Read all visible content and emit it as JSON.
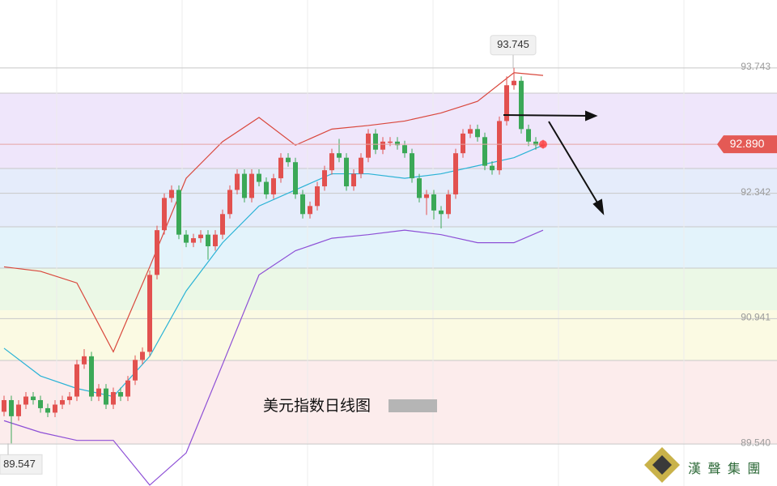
{
  "chart_data": {
    "type": "candlestick",
    "title": "美元指数日线图",
    "watermark": "漢 聲 集 團",
    "ylim": [
      89.07,
      94.503
    ],
    "yticks": [
      93.743,
      92.342,
      90.941,
      {
        "value": 89.54,
        "label": "89.540"
      }
    ],
    "grid": true,
    "up_color": "#e2514f",
    "down_color": "#3ba857",
    "open": [
      89.9,
      90.03,
      89.85,
      89.98,
      90.07,
      90.03,
      89.94,
      89.89,
      89.98,
      90.03,
      90.07,
      90.43,
      90.52,
      90.07,
      90.16,
      89.98,
      90.12,
      90.07,
      90.25,
      90.48,
      90.57,
      91.43,
      91.93,
      92.29,
      92.38,
      91.88,
      91.79,
      91.84,
      91.88,
      91.75,
      91.88,
      92.11,
      92.38,
      92.56,
      92.29,
      92.56,
      92.47,
      92.33,
      92.51,
      92.74,
      92.69,
      92.33,
      92.11,
      92.2,
      92.42,
      92.6,
      92.79,
      92.74,
      92.42,
      92.56,
      92.74,
      93.01,
      92.83,
      92.92,
      92.92,
      92.88,
      92.79,
      92.51,
      92.29,
      92.33,
      92.15,
      92.11,
      92.33,
      92.79,
      93.01,
      93.06,
      92.97,
      92.65,
      92.6,
      93.15,
      93.55,
      93.6,
      93.06,
      92.92,
      92.88
    ],
    "close": [
      90.03,
      89.85,
      89.98,
      90.07,
      90.03,
      89.94,
      89.89,
      89.98,
      90.03,
      90.07,
      90.43,
      90.52,
      90.07,
      90.16,
      89.98,
      90.12,
      90.07,
      90.25,
      90.48,
      90.57,
      91.43,
      91.93,
      92.29,
      92.38,
      91.88,
      91.79,
      91.84,
      91.88,
      91.75,
      91.88,
      92.11,
      92.38,
      92.56,
      92.29,
      92.56,
      92.47,
      92.33,
      92.51,
      92.74,
      92.69,
      92.33,
      92.11,
      92.2,
      92.42,
      92.6,
      92.79,
      92.74,
      92.42,
      92.56,
      92.74,
      93.01,
      92.83,
      92.92,
      92.92,
      92.88,
      92.79,
      92.51,
      92.29,
      92.33,
      92.15,
      92.11,
      92.33,
      92.79,
      93.01,
      93.06,
      92.97,
      92.65,
      92.6,
      93.15,
      93.55,
      93.6,
      93.06,
      92.92,
      92.88,
      92.89
    ],
    "high": [
      90.08,
      90.08,
      90.03,
      90.12,
      90.12,
      90.08,
      89.99,
      90.03,
      90.08,
      90.12,
      90.48,
      90.6,
      90.57,
      90.21,
      90.21,
      90.17,
      90.17,
      90.3,
      90.53,
      90.62,
      91.48,
      91.98,
      92.34,
      92.43,
      92.43,
      91.93,
      91.89,
      91.93,
      91.93,
      91.93,
      92.16,
      92.43,
      92.61,
      92.61,
      92.61,
      92.61,
      92.52,
      92.56,
      92.79,
      92.79,
      92.74,
      92.38,
      92.25,
      92.47,
      92.65,
      92.84,
      92.95,
      92.79,
      92.61,
      92.79,
      93.06,
      93.06,
      92.97,
      92.97,
      92.97,
      92.93,
      92.84,
      92.56,
      92.38,
      92.38,
      92.2,
      92.38,
      92.84,
      93.06,
      93.11,
      93.11,
      93.02,
      92.7,
      93.2,
      93.65,
      93.745,
      93.65,
      93.11,
      92.97,
      92.94
    ],
    "low": [
      89.85,
      89.547,
      89.8,
      89.93,
      89.98,
      89.89,
      89.84,
      89.84,
      89.93,
      89.98,
      90.02,
      90.38,
      90.02,
      90.02,
      89.93,
      89.93,
      90.02,
      90.02,
      90.2,
      90.43,
      90.52,
      91.38,
      91.88,
      92.24,
      91.83,
      91.74,
      91.74,
      91.79,
      91.6,
      91.7,
      91.83,
      92.06,
      92.33,
      92.24,
      92.24,
      92.42,
      92.28,
      92.28,
      92.46,
      92.64,
      92.28,
      92.06,
      92.06,
      92.15,
      92.37,
      92.55,
      92.69,
      92.37,
      92.37,
      92.51,
      92.69,
      92.78,
      92.78,
      92.87,
      92.83,
      92.74,
      92.46,
      92.24,
      92.1,
      92.05,
      91.95,
      92.06,
      92.28,
      92.74,
      92.96,
      92.92,
      92.6,
      92.55,
      92.55,
      93.1,
      93.5,
      93.01,
      92.87,
      92.83,
      92.84
    ],
    "series": [
      {
        "color": "#d9473c",
        "x": [
          0,
          5,
          10,
          15,
          20,
          25,
          30,
          35,
          40,
          45,
          50,
          55,
          60,
          65,
          70,
          74
        ],
        "values": [
          91.52,
          91.47,
          91.34,
          90.57,
          91.52,
          92.51,
          92.92,
          93.19,
          92.88,
          93.06,
          93.1,
          93.15,
          93.24,
          93.37,
          93.69,
          93.66
        ]
      },
      {
        "color": "#2bb3d6",
        "x": [
          0,
          5,
          10,
          15,
          20,
          25,
          30,
          35,
          40,
          45,
          50,
          55,
          60,
          65,
          70,
          74
        ],
        "values": [
          90.61,
          90.3,
          90.16,
          90.07,
          90.52,
          91.25,
          91.79,
          92.2,
          92.38,
          92.56,
          92.56,
          92.51,
          92.56,
          92.65,
          92.74,
          92.88
        ]
      },
      {
        "color": "#8d4fd6",
        "x": [
          0,
          5,
          10,
          15,
          20,
          25,
          30,
          35,
          40,
          45,
          50,
          55,
          60,
          65,
          70,
          74
        ],
        "values": [
          89.8,
          89.67,
          89.58,
          89.58,
          89.08,
          89.44,
          90.43,
          91.43,
          91.7,
          91.84,
          91.88,
          91.93,
          91.88,
          91.79,
          91.79,
          91.93
        ]
      }
    ],
    "annotations": [
      {
        "text": "93.745",
        "value": 93.745
      },
      {
        "text": "89.547",
        "value": 89.547
      },
      {
        "text": "92.890",
        "value": 92.89
      }
    ]
  }
}
